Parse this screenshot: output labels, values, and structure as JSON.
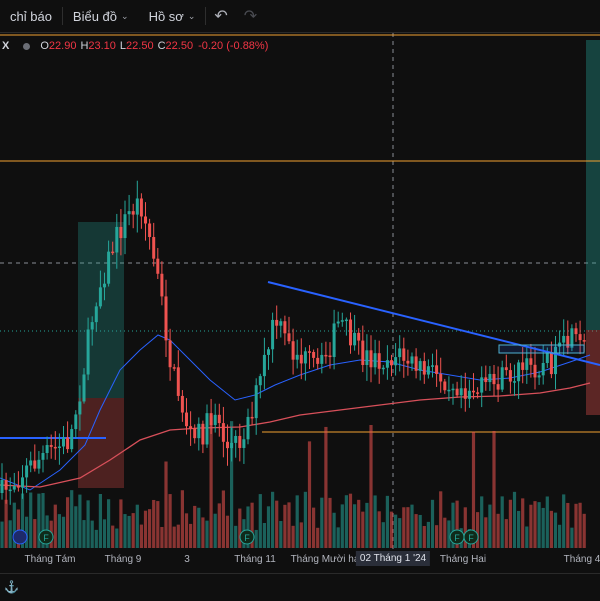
{
  "toolbar": {
    "indicators_label": "chỉ báo",
    "chart_label": "Biểu đồ",
    "profile_label": "Hồ sơ",
    "undo_icon": "undo-icon",
    "redo_icon": "redo-icon"
  },
  "legend": {
    "symbol": "X",
    "open_label": "O",
    "open": "22.90",
    "high_label": "H",
    "high": "23.10",
    "low_label": "L",
    "low": "22.50",
    "close_label": "C",
    "close": "22.50",
    "change": "-0.20 (-0.88%)"
  },
  "x_axis": {
    "ticks": [
      "Tháng Tám",
      "Tháng 9",
      "3",
      "Tháng 11",
      "Tháng Mười ha",
      "02 Tháng 1 '24",
      "Tháng Hai",
      "Tháng 4"
    ],
    "highlighted": "02 Tháng 1 '24"
  },
  "colors": {
    "up": "#26a69a",
    "down": "#ef5350",
    "ma_fast": "#2962ff",
    "ma_slow": "#d8505a",
    "level": "#f0a030",
    "trendline": "#2962ff"
  },
  "chart_data": {
    "type": "candlestick",
    "x_labels": [
      "Tháng Tám",
      "Tháng 9",
      "3",
      "Tháng 11",
      "Tháng Mười ha",
      "02 Tháng 1 '24",
      "Tháng Hai",
      "Tháng 4"
    ],
    "last_bar": {
      "open": 22.9,
      "high": 23.1,
      "low": 22.5,
      "close": 22.5,
      "change": -0.2,
      "change_pct": -0.88
    },
    "events": [
      "F",
      "F",
      "F",
      "F",
      "F"
    ]
  },
  "bottom": {
    "label": "⚓"
  }
}
